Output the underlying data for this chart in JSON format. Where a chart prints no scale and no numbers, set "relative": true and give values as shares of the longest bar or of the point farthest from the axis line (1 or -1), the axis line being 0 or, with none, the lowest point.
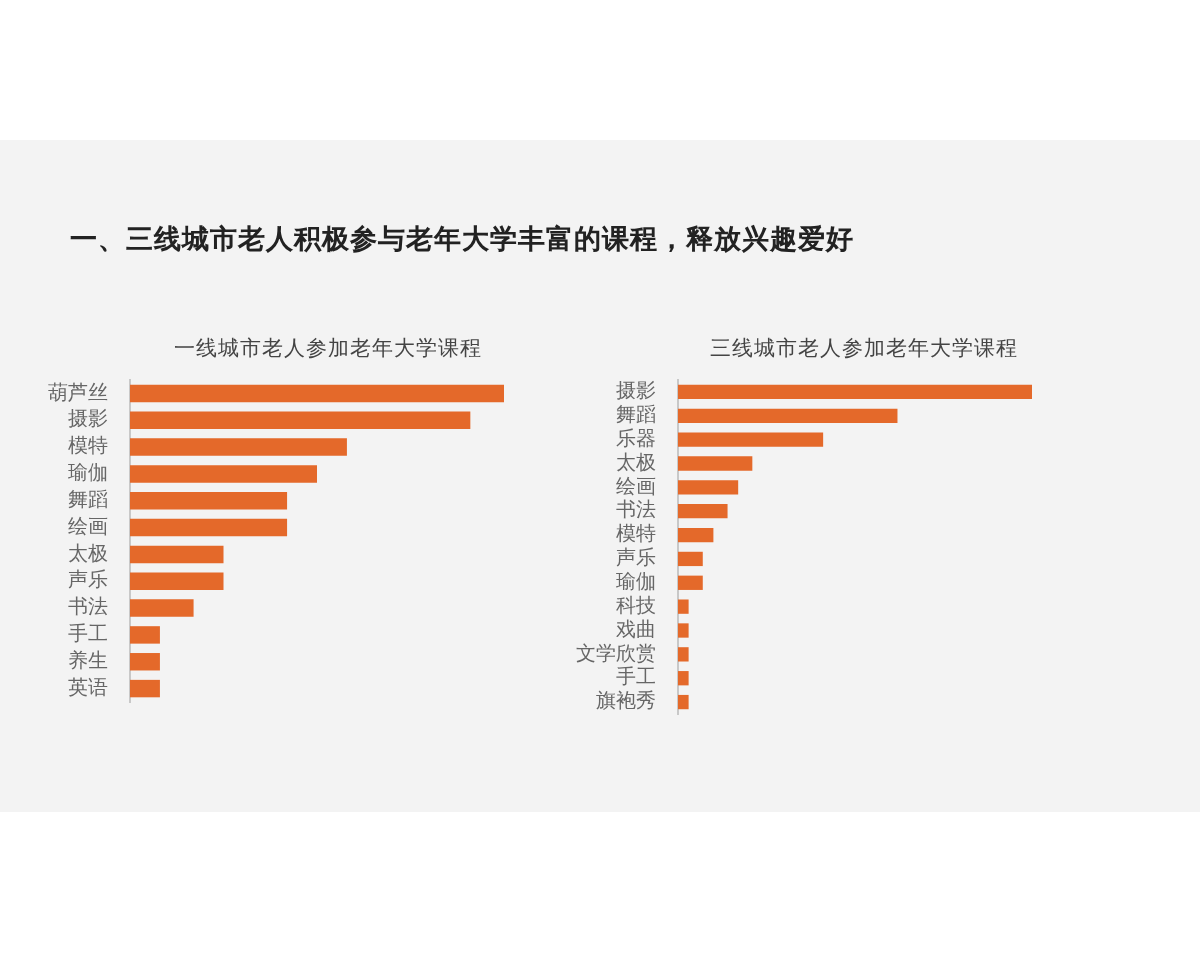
{
  "chart_data": [
    {
      "type": "other",
      "title": "一、三线城市老人积极参与老年大学丰富的课程，释放兴趣爱好"
    },
    {
      "type": "bar",
      "orientation": "horizontal",
      "relative": true,
      "title": "一线城市老人参加老年大学课程",
      "categories": [
        "葫芦丝",
        "摄影",
        "模特",
        "瑜伽",
        "舞蹈",
        "绘画",
        "太极",
        "声乐",
        "书法",
        "手工",
        "养生",
        "英语"
      ],
      "values": [
        1,
        0.91,
        0.58,
        0.5,
        0.42,
        0.42,
        0.25,
        0.25,
        0.17,
        0.08,
        0.08,
        0.08
      ],
      "color": "#e4692a"
    },
    {
      "type": "bar",
      "orientation": "horizontal",
      "relative": true,
      "title": "三线城市老人参加老年大学课程",
      "categories": [
        "摄影",
        "舞蹈",
        "乐器",
        "太极",
        "绘画",
        "书法",
        "模特",
        "声乐",
        "瑜伽",
        "科技",
        "戏曲",
        "文学欣赏",
        "手工",
        "旗袍秀"
      ],
      "values": [
        1,
        0.62,
        0.41,
        0.21,
        0.17,
        0.14,
        0.1,
        0.07,
        0.07,
        0.03,
        0.03,
        0.03,
        0.03,
        0.03
      ],
      "color": "#e4692a"
    }
  ]
}
